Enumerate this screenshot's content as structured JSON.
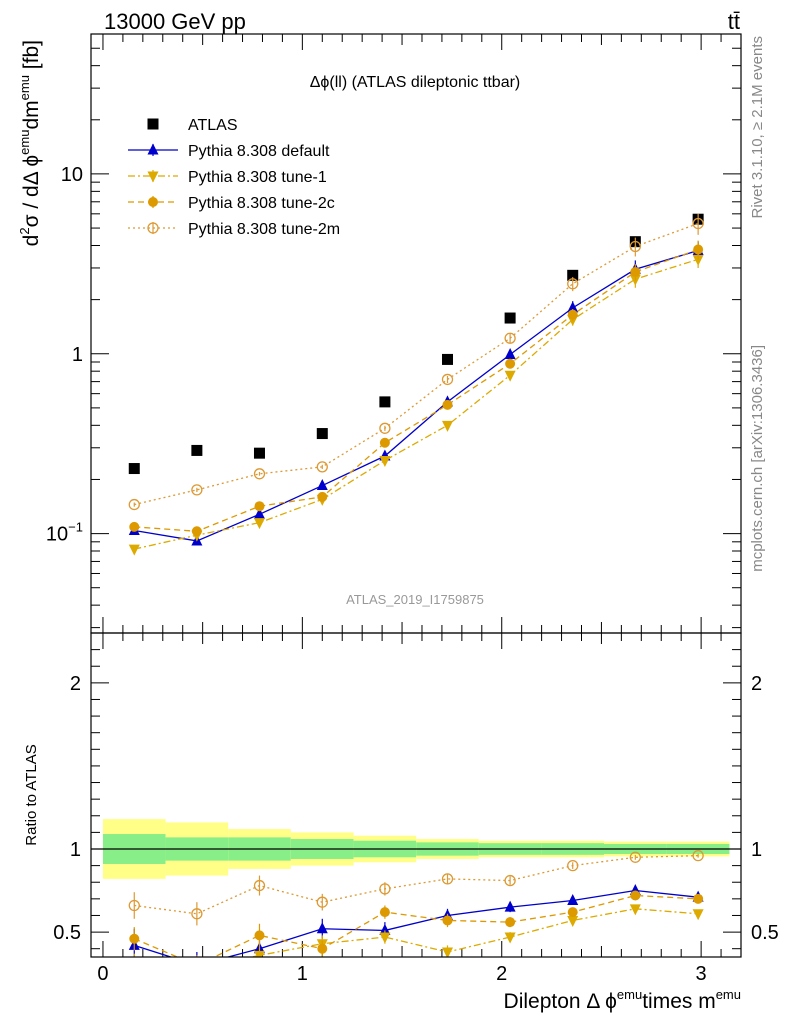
{
  "header": {
    "process": "13000 GeV pp",
    "final_state": "tt̄"
  },
  "side_labels": {
    "rivet": "Rivet 3.1.10, ≥ 2.1M events",
    "mcplots": "mcplots.cern.ch [arXiv:1306.3436]"
  },
  "chart_data": [
    {
      "type": "scatter",
      "title": "Δϕ(ll) (ATLAS dileptonic ttbar)",
      "ylabel": "d²σ / dΔ ϕ^emu dm^emu [fb]",
      "xlabel": "",
      "analysis_id": "ATLAS_2019_I1759875",
      "yscale": "log",
      "xlim": [
        -0.06,
        3.2
      ],
      "ylim": [
        0.028,
        60
      ],
      "x_ticks": [
        "0",
        "1",
        "2",
        "3"
      ],
      "y_ticks": [
        {
          "value": 0.1,
          "label": "10^-1"
        },
        {
          "value": 1,
          "label": "1"
        },
        {
          "value": 10,
          "label": "10"
        }
      ],
      "legend_position": "top-left",
      "x": [
        0.157,
        0.471,
        0.785,
        1.1,
        1.414,
        1.728,
        2.042,
        2.356,
        2.67,
        2.985
      ],
      "series": [
        {
          "name": "ATLAS",
          "color": "#000000",
          "marker": "square",
          "line": "none",
          "values": [
            0.23,
            0.29,
            0.28,
            0.36,
            0.54,
            0.93,
            1.58,
            2.73,
            4.2,
            5.6
          ]
        },
        {
          "name": "Pythia 8.308 default",
          "color": "#0000cc",
          "marker": "triangle-up",
          "line": "solid",
          "values": [
            0.104,
            0.091,
            0.128,
            0.185,
            0.27,
            0.54,
            0.99,
            1.8,
            2.95,
            3.75
          ],
          "errors": [
            0.015,
            0.015,
            0.012,
            0.015,
            0.02,
            0.03,
            0.04,
            0.06,
            0.08,
            0.08
          ]
        },
        {
          "name": "Pythia 8.308 tune-1",
          "color": "#ddaa00",
          "marker": "triangle-down",
          "line": "dashdot",
          "values": [
            0.082,
            0.098,
            0.115,
            0.155,
            0.255,
            0.4,
            0.76,
            1.55,
            2.6,
            3.35
          ],
          "errors": [
            0.012,
            0.012,
            0.012,
            0.014,
            0.018,
            0.025,
            0.035,
            0.05,
            0.07,
            0.07
          ]
        },
        {
          "name": "Pythia 8.308 tune-2c",
          "color": "#dd9900",
          "marker": "circle",
          "line": "dashed",
          "values": [
            0.109,
            0.103,
            0.142,
            0.16,
            0.32,
            0.52,
            0.88,
            1.65,
            2.85,
            3.8
          ],
          "errors": [
            0.014,
            0.013,
            0.013,
            0.015,
            0.02,
            0.03,
            0.04,
            0.05,
            0.07,
            0.08
          ]
        },
        {
          "name": "Pythia 8.308 tune-2m",
          "color": "#dd9933",
          "marker": "open-circle",
          "line": "dotted",
          "values": [
            0.145,
            0.175,
            0.215,
            0.235,
            0.385,
            0.72,
            1.22,
            2.45,
            3.95,
            5.3
          ],
          "errors": [
            0.018,
            0.018,
            0.016,
            0.018,
            0.022,
            0.03,
            0.04,
            0.06,
            0.08,
            0.09
          ]
        }
      ]
    },
    {
      "type": "scatter",
      "title": "",
      "ylabel": "Ratio to ATLAS",
      "xlabel": "Dilepton Δ ϕ^emu times m^emu",
      "yscale": "linear",
      "xlim": [
        -0.06,
        3.2
      ],
      "ylim": [
        0.35,
        2.3
      ],
      "x_ticks": [
        "0",
        "1",
        "2",
        "3"
      ],
      "y_ticks": [
        {
          "value": 0.5,
          "label": "0.5"
        },
        {
          "value": 1,
          "label": "1"
        },
        {
          "value": 2,
          "label": "2"
        }
      ],
      "reference_line": 1,
      "bands": {
        "edges": [
          0,
          0.314,
          0.628,
          0.942,
          1.257,
          1.571,
          1.885,
          2.199,
          2.513,
          2.827,
          3.142
        ],
        "stat": {
          "color": "#88ee88",
          "lo": [
            0.91,
            0.93,
            0.93,
            0.94,
            0.95,
            0.96,
            0.965,
            0.965,
            0.97,
            0.97
          ],
          "hi": [
            1.09,
            1.07,
            1.07,
            1.06,
            1.05,
            1.04,
            1.035,
            1.035,
            1.03,
            1.03
          ]
        },
        "total": {
          "color": "#ffff88",
          "lo": [
            0.82,
            0.84,
            0.88,
            0.9,
            0.92,
            0.94,
            0.95,
            0.95,
            0.955,
            0.955
          ],
          "hi": [
            1.18,
            1.16,
            1.12,
            1.1,
            1.08,
            1.06,
            1.05,
            1.05,
            1.045,
            1.045
          ]
        }
      },
      "x": [
        0.157,
        0.471,
        0.785,
        1.1,
        1.414,
        1.728,
        2.042,
        2.356,
        2.67,
        2.985
      ],
      "series": [
        {
          "name": "Pythia 8.308 default",
          "color": "#0000cc",
          "marker": "triangle-up",
          "line": "solid",
          "values": [
            0.42,
            0.3,
            0.4,
            0.52,
            0.51,
            0.6,
            0.65,
            0.69,
            0.75,
            0.71
          ],
          "errors": [
            0.1,
            0.08,
            0.05,
            0.06,
            0.05,
            0.04,
            0.03,
            0.025,
            0.02,
            0.015
          ]
        },
        {
          "name": "Pythia 8.308 tune-1",
          "color": "#ddaa00",
          "marker": "triangle-down",
          "line": "dashdot",
          "values": [
            0.3,
            0.28,
            0.36,
            0.43,
            0.47,
            0.38,
            0.47,
            0.57,
            0.64,
            0.61
          ],
          "errors": [
            0.07,
            0.06,
            0.05,
            0.05,
            0.04,
            0.04,
            0.03,
            0.025,
            0.02,
            0.015
          ]
        },
        {
          "name": "Pythia 8.308 tune-2c",
          "color": "#dd9900",
          "marker": "circle",
          "line": "dashed",
          "values": [
            0.46,
            0.3,
            0.48,
            0.4,
            0.62,
            0.57,
            0.56,
            0.62,
            0.72,
            0.7
          ],
          "errors": [
            0.07,
            0.06,
            0.07,
            0.05,
            0.04,
            0.04,
            0.03,
            0.025,
            0.02,
            0.015
          ]
        },
        {
          "name": "Pythia 8.308 tune-2m",
          "color": "#dd9933",
          "marker": "open-circle",
          "line": "dotted",
          "values": [
            0.66,
            0.61,
            0.78,
            0.68,
            0.76,
            0.82,
            0.81,
            0.9,
            0.95,
            0.96
          ],
          "errors": [
            0.08,
            0.07,
            0.06,
            0.05,
            0.04,
            0.03,
            0.025,
            0.02,
            0.015,
            0.012
          ]
        }
      ]
    }
  ]
}
